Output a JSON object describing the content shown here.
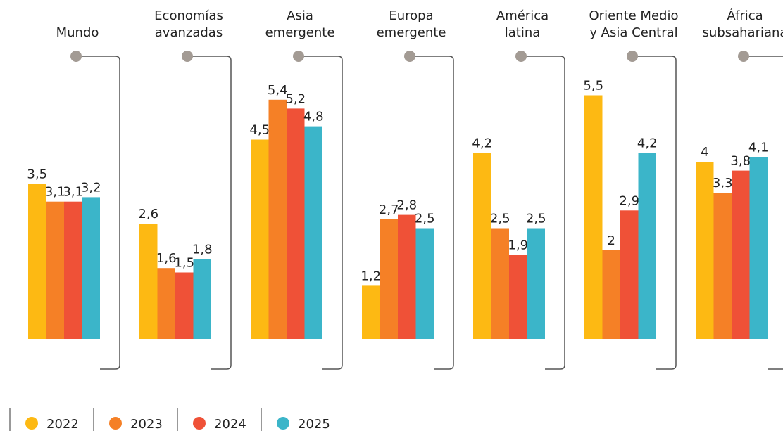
{
  "chart_data": {
    "type": "bar",
    "categories": [
      [
        "Mundo"
      ],
      [
        "Economías",
        "avanzadas"
      ],
      [
        "Asia",
        "emergente"
      ],
      [
        "Europa",
        "emergente"
      ],
      [
        "América",
        "latina"
      ],
      [
        "Oriente Medio",
        "y Asia Central"
      ],
      [
        "África",
        "subsahariana"
      ]
    ],
    "series": [
      {
        "name": "2022",
        "color": "#fdb913",
        "values": [
          3.5,
          2.6,
          4.5,
          1.2,
          4.2,
          5.5,
          4
        ],
        "value_labels": [
          "3,5",
          "2,6",
          "4,5",
          "1,2",
          "4,2",
          "5,5",
          "4"
        ]
      },
      {
        "name": "2023",
        "color": "#f58026",
        "values": [
          3.1,
          1.6,
          5.4,
          2.7,
          2.5,
          2,
          3.3
        ],
        "value_labels": [
          "3,1",
          "1,6",
          "5,4",
          "2,7",
          "2,5",
          "2",
          "3,3"
        ]
      },
      {
        "name": "2024",
        "color": "#ef5137",
        "values": [
          3.1,
          1.5,
          5.2,
          2.8,
          1.9,
          2.9,
          3.8
        ],
        "value_labels": [
          "3,1",
          "1,5",
          "5,2",
          "2,8",
          "1,9",
          "2,9",
          "3,8"
        ]
      },
      {
        "name": "2025",
        "color": "#3bb5c9",
        "values": [
          3.2,
          1.8,
          4.8,
          2.5,
          2.5,
          4.2,
          4.1
        ],
        "value_labels": [
          "3,2",
          "1,8",
          "4,8",
          "2,5",
          "2,5",
          "4,2",
          "4,1"
        ]
      }
    ]
  }
}
